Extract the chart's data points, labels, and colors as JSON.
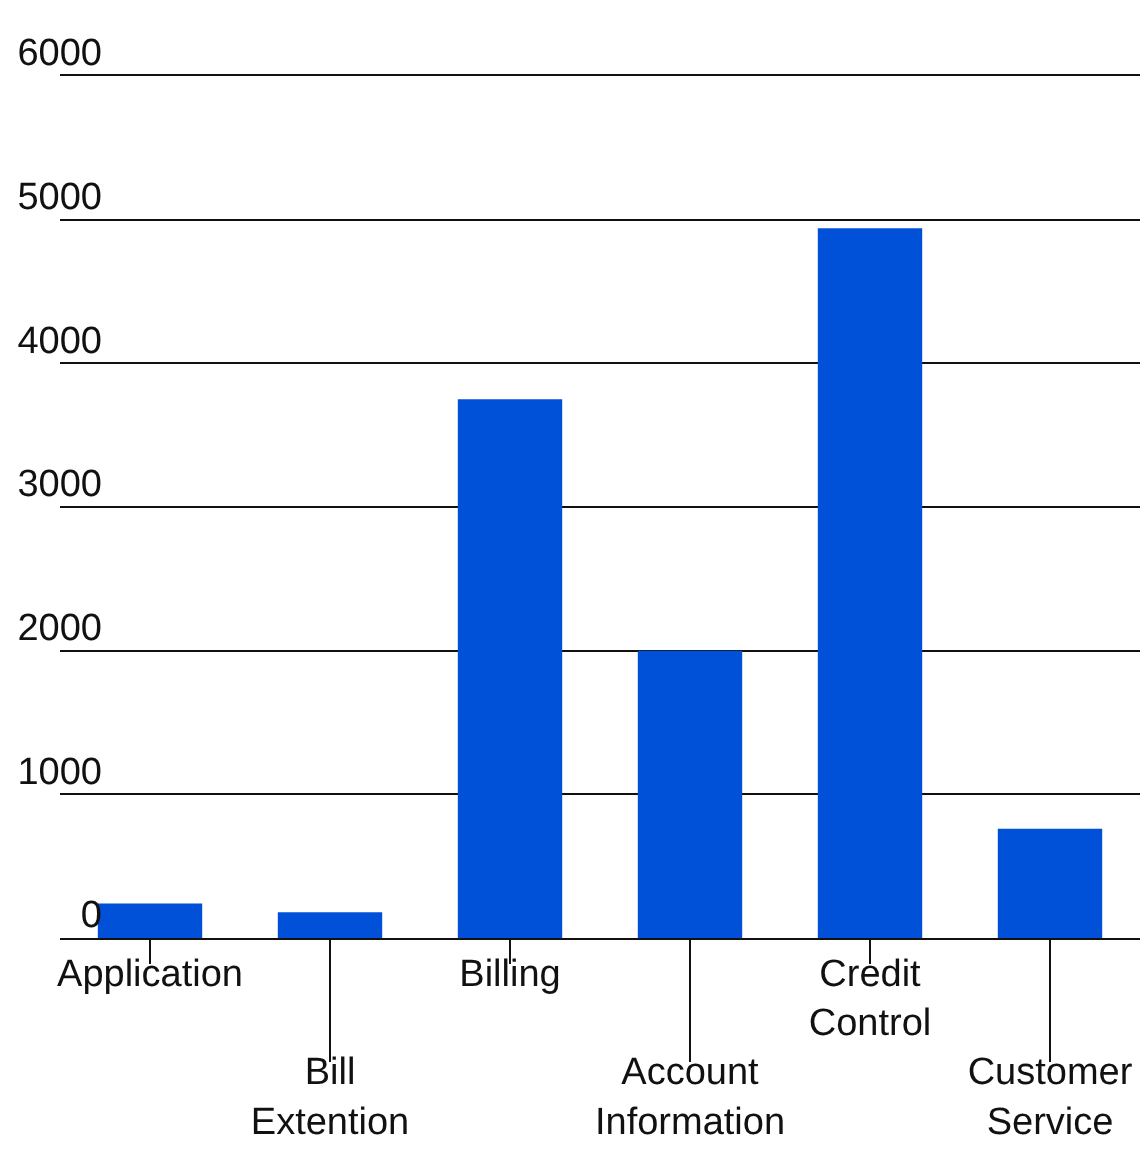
{
  "chart_data": {
    "type": "bar",
    "categories": [
      "Application",
      "Bill Extention",
      "Billing",
      "Account Information",
      "Credit Control",
      "Customer Service"
    ],
    "values": [
      240,
      180,
      3750,
      2000,
      4940,
      760
    ],
    "color": "#0050d8",
    "ylim": [
      0,
      6000
    ],
    "yticks": [
      0,
      1000,
      2000,
      3000,
      4000,
      5000,
      6000
    ],
    "grid": "y"
  }
}
